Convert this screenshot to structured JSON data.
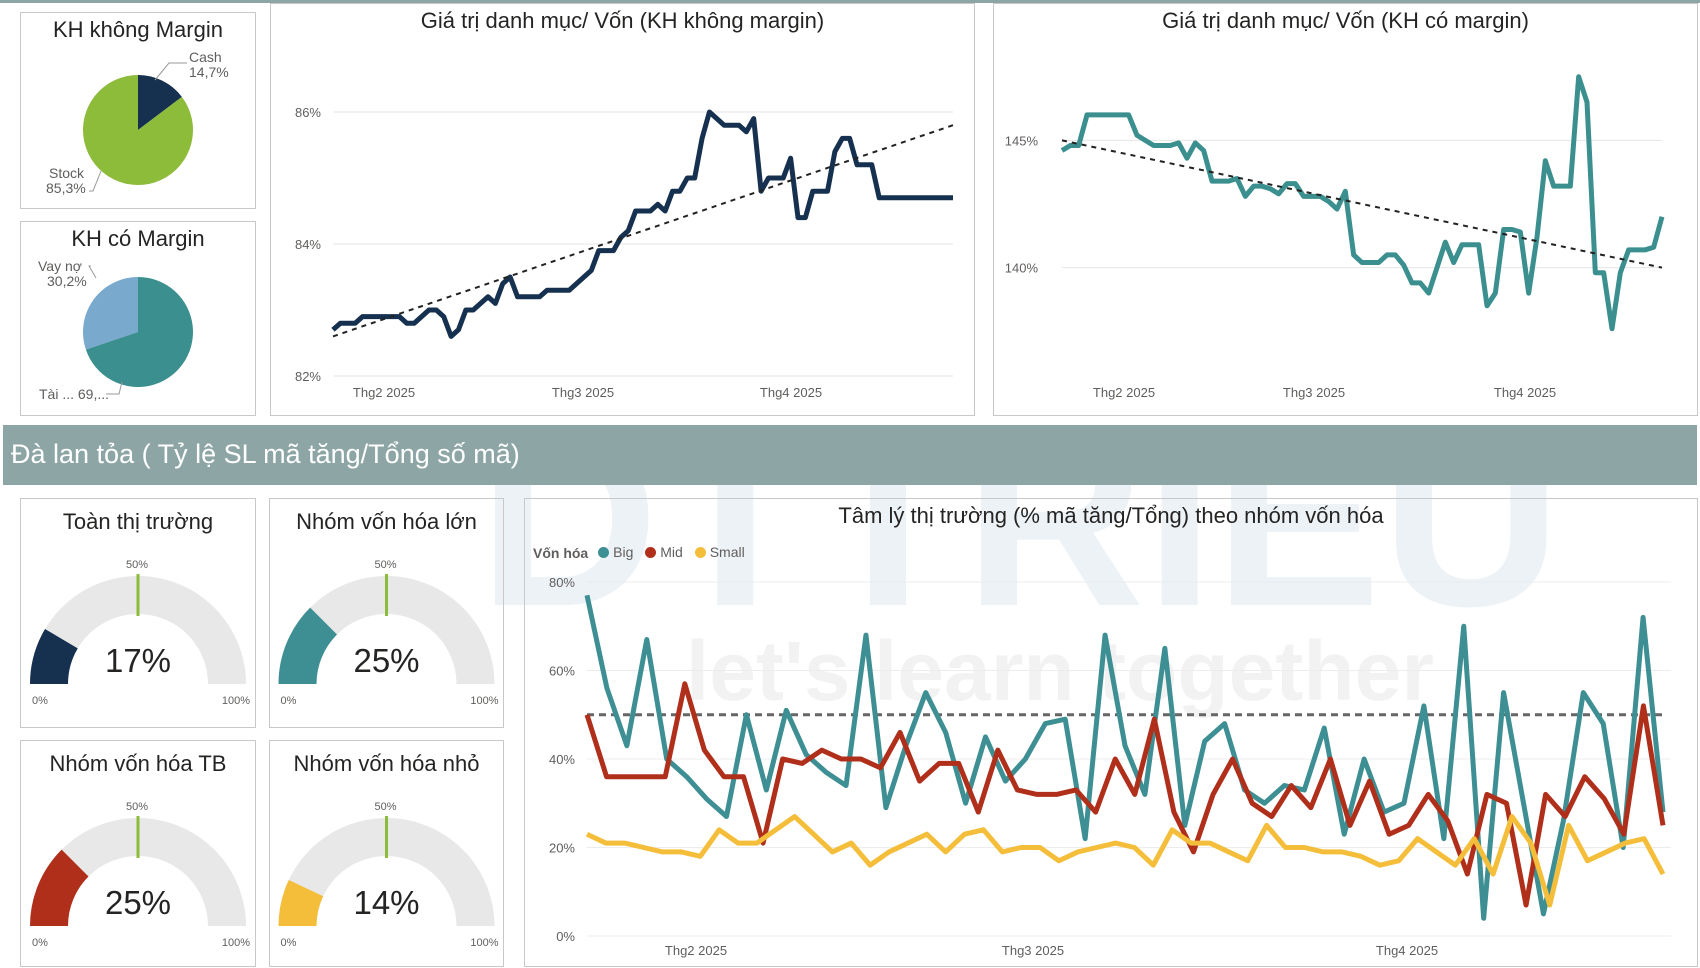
{
  "colors": {
    "navy": "#16304f",
    "lime": "#8dbb3a",
    "teal": "#3b8f8f",
    "lightblue": "#79a9cc",
    "big": "#3e8f93",
    "mid": "#b02f1b",
    "small": "#f4be3b",
    "gauge_bg": "#e8e8e8",
    "gauge_target": "#8dbb3a",
    "banner": "#8da6a5"
  },
  "pie1": {
    "title": "KH không Margin",
    "cash_label": "Cash",
    "cash_value": "14,7%",
    "stock_label": "Stock",
    "stock_value": "85,3%"
  },
  "pie2": {
    "title": "KH có Margin",
    "loan_label": "Vay nợ",
    "loan_value": "30,2%",
    "asset_label": "Tài ... 69,..."
  },
  "line1": {
    "title": "Giá trị danh mục/ Vốn (KH không margin)",
    "y_ticks": [
      "86%",
      "84%",
      "82%"
    ],
    "x_ticks": [
      "Thg2 2025",
      "Thg3 2025",
      "Thg4 2025"
    ]
  },
  "line2": {
    "title": "Giá trị danh mục/ Vốn (KH có margin)",
    "y_ticks": [
      "145%",
      "140%"
    ],
    "x_ticks": [
      "Thg2 2025",
      "Thg3 2025",
      "Thg4 2025"
    ]
  },
  "banner": {
    "text": "Đà lan tỏa ( Tỷ lệ SL mã tăng/Tổng số mã)"
  },
  "gauges": [
    {
      "title": "Toàn thị trường",
      "value_text": "17%",
      "color": "#16304f"
    },
    {
      "title": "Nhóm vốn hóa lớn",
      "value_text": "25%",
      "color": "#3e8f93"
    },
    {
      "title": "Nhóm vốn hóa TB",
      "value_text": "25%",
      "color": "#b02f1b"
    },
    {
      "title": "Nhóm vốn hóa nhỏ",
      "value_text": "14%",
      "color": "#f4be3b"
    }
  ],
  "gauge_labels": {
    "min": "0%",
    "mid": "50%",
    "max": "100%"
  },
  "sentiment": {
    "title": "Tâm lý thị trường (% mã tăng/Tổng) theo nhóm vốn hóa",
    "legend_title": "Vốn hóa",
    "legend": [
      "Big",
      "Mid",
      "Small"
    ],
    "y_ticks": [
      "80%",
      "60%",
      "40%",
      "20%",
      "0%"
    ],
    "x_ticks": [
      "Thg2 2025",
      "Thg3 2025",
      "Thg4 2025"
    ]
  },
  "watermark": {
    "brand": "DTTRIEU",
    "slogan": "let's learn together"
  },
  "chart_data": [
    {
      "type": "pie",
      "title": "KH không Margin",
      "slices": [
        {
          "label": "Cash",
          "value": 14.7
        },
        {
          "label": "Stock",
          "value": 85.3
        }
      ]
    },
    {
      "type": "pie",
      "title": "KH có Margin",
      "slices": [
        {
          "label": "Vay nợ",
          "value": 30.2
        },
        {
          "label": "Tài sản",
          "value": 69.8
        }
      ]
    },
    {
      "type": "line",
      "title": "Giá trị danh mục/ Vốn (KH không margin)",
      "ylim": [
        82,
        86.5
      ],
      "xlim": [
        0,
        100
      ],
      "x": [
        0,
        1,
        2,
        3,
        4,
        5,
        6,
        7,
        8,
        9,
        10,
        11,
        12,
        13,
        14,
        15,
        16,
        17,
        18,
        19,
        20,
        21,
        22,
        23,
        24,
        25,
        26,
        27,
        28,
        29,
        30,
        31,
        32,
        33,
        34,
        35,
        36,
        37,
        38,
        39,
        40,
        41,
        42,
        43,
        44,
        45,
        46,
        47,
        48,
        49,
        50,
        51,
        52,
        53,
        54,
        55,
        56,
        57,
        58,
        59,
        60,
        61,
        62,
        63,
        64,
        65,
        66,
        67,
        68,
        69,
        70,
        71,
        72,
        73,
        74,
        75,
        76,
        77,
        78,
        79,
        80,
        81,
        82,
        83,
        84,
        85,
        86,
        87,
        88,
        89,
        90,
        91,
        92,
        93,
        94,
        95,
        96,
        97,
        98,
        99,
        100
      ],
      "values": [
        82.7,
        82.8,
        82.8,
        82.8,
        82.9,
        82.9,
        82.9,
        82.9,
        82.9,
        82.9,
        82.8,
        82.8,
        82.9,
        83.0,
        83.0,
        82.9,
        82.6,
        82.7,
        83.0,
        83.0,
        83.1,
        83.2,
        83.1,
        83.4,
        83.5,
        83.2,
        83.2,
        83.2,
        83.2,
        83.3,
        83.3,
        83.3,
        83.3,
        83.4,
        83.5,
        83.6,
        83.9,
        83.9,
        83.9,
        84.1,
        84.2,
        84.5,
        84.5,
        84.5,
        84.6,
        84.5,
        84.8,
        84.8,
        85.0,
        85.0,
        85.6,
        86.0,
        85.9,
        85.8,
        85.8,
        85.8,
        85.7,
        85.9,
        84.8,
        85.0,
        85.0,
        85.0,
        85.3,
        84.4,
        84.4,
        84.8,
        84.8,
        84.8,
        85.4,
        85.6,
        85.6,
        85.2,
        85.2,
        85.2,
        84.7,
        84.7,
        84.7,
        84.7,
        84.7,
        84.7,
        84.7,
        84.7,
        84.7,
        84.7,
        84.7,
        84.7,
        84.7,
        84.7,
        84.7,
        84.7,
        84.7,
        84.7,
        84.7,
        84.7,
        84.7,
        84.7,
        84.7,
        84.7,
        84.7,
        84.7,
        84.7
      ],
      "trend": [
        82.6,
        85.8
      ]
    },
    {
      "type": "line",
      "title": "Giá trị danh mục/ Vốn (KH có margin)",
      "ylim": [
        137,
        148
      ],
      "values": [
        144.6,
        144.8,
        144.8,
        146.0,
        146.0,
        146.0,
        146.0,
        146.0,
        146.0,
        145.2,
        145.0,
        144.8,
        144.8,
        144.8,
        144.9,
        144.3,
        144.9,
        144.6,
        143.4,
        143.4,
        143.4,
        143.5,
        142.8,
        143.2,
        143.2,
        143.1,
        142.9,
        143.3,
        143.3,
        142.8,
        142.8,
        142.8,
        142.6,
        142.3,
        143.0,
        140.5,
        140.2,
        140.2,
        140.2,
        140.5,
        140.5,
        140.1,
        139.4,
        139.4,
        139.0,
        140.0,
        141.0,
        140.2,
        140.9,
        140.9,
        140.9,
        138.5,
        139.0,
        141.5,
        141.5,
        141.4,
        139.0,
        141.2,
        144.2,
        143.2,
        143.2,
        143.2,
        147.5,
        146.5,
        139.8,
        139.8,
        137.6,
        139.8,
        140.7,
        140.7,
        140.7,
        140.8,
        142.0
      ],
      "trend": [
        145.0,
        140.0
      ]
    },
    {
      "type": "line",
      "title": "Tâm lý thị trường (% mã tăng/Tổng) theo nhóm vốn hóa",
      "ylim": [
        0,
        80
      ],
      "reference_line": 50,
      "series": [
        {
          "name": "Big",
          "values": [
            77,
            56,
            43,
            67,
            40,
            36,
            31,
            27,
            50,
            33,
            51,
            41,
            37,
            34,
            68,
            29,
            43,
            55,
            46,
            30,
            45,
            35,
            40,
            48,
            49,
            22,
            68,
            43,
            32,
            65,
            25,
            44,
            48,
            33,
            30,
            34,
            33,
            47,
            23,
            40,
            28,
            30,
            52,
            22,
            70,
            4,
            55,
            30,
            5,
            26,
            55,
            48,
            20,
            72,
            28
          ]
        },
        {
          "name": "Mid",
          "values": [
            50,
            36,
            36,
            36,
            36,
            57,
            42,
            36,
            36,
            21,
            40,
            39,
            42,
            40,
            40,
            38,
            46,
            35,
            39,
            39,
            28,
            42,
            33,
            32,
            32,
            33,
            28,
            40,
            32,
            49,
            28,
            19,
            32,
            40,
            30,
            27,
            34,
            29,
            40,
            25,
            35,
            23,
            25,
            32,
            26,
            14,
            32,
            30,
            7,
            32,
            27,
            36,
            31,
            23,
            52,
            25
          ]
        },
        {
          "name": "Small",
          "values": [
            23,
            21,
            21,
            20,
            19,
            19,
            18,
            24,
            21,
            21,
            24,
            27,
            23,
            19,
            21,
            16,
            19,
            21,
            23,
            19,
            23,
            24,
            19,
            20,
            20,
            17,
            19,
            20,
            21,
            20,
            16,
            24,
            21,
            21,
            19,
            17,
            25,
            20,
            20,
            19,
            19,
            18,
            16,
            17,
            22,
            19,
            16,
            22,
            14,
            27,
            21,
            7,
            25,
            17,
            19,
            21,
            22,
            14
          ]
        }
      ]
    },
    {
      "type": "gauge",
      "gauges": [
        {
          "title": "Toàn thị trường",
          "value": 17,
          "target": 50,
          "min": 0,
          "max": 100
        },
        {
          "title": "Nhóm vốn hóa lớn",
          "value": 25,
          "target": 50,
          "min": 0,
          "max": 100
        },
        {
          "title": "Nhóm vốn hóa TB",
          "value": 25,
          "target": 50,
          "min": 0,
          "max": 100
        },
        {
          "title": "Nhóm vốn hóa nhỏ",
          "value": 14,
          "target": 50,
          "min": 0,
          "max": 100
        }
      ]
    }
  ]
}
